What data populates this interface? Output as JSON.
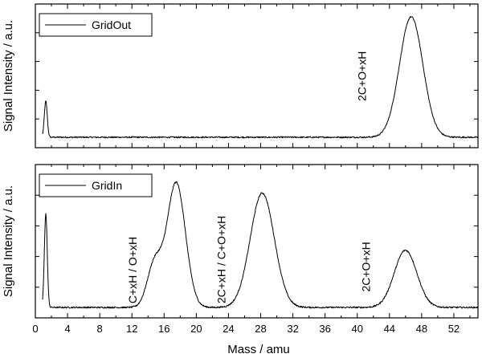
{
  "chart_data": {
    "type": "line",
    "xlabel": "Mass   /   amu",
    "x_ticks": [
      0,
      4,
      8,
      12,
      16,
      20,
      24,
      28,
      32,
      36,
      40,
      44,
      48,
      52
    ],
    "xlim": [
      0,
      55
    ],
    "panels": [
      {
        "name": "top",
        "ylabel": "Signal Intensity   /   a.u.",
        "ylim": [
          0,
          1.1
        ],
        "legend": "GridOut",
        "legend_position": "top-left",
        "annotations": [
          {
            "text": "2C+O+xH",
            "x": 40.5,
            "y": 0.3
          }
        ],
        "peaks": [
          {
            "center": 1.3,
            "height": 0.3,
            "width": 0.18
          },
          {
            "center": 46.7,
            "height": 1.0,
            "width": 1.45
          }
        ]
      },
      {
        "name": "bottom",
        "ylabel": "Signal Intensity   /   a.u.",
        "ylim": [
          0,
          1.1
        ],
        "legend": "GridIn",
        "legend_position": "top-left",
        "annotations": [
          {
            "text": "C+xH / O+xH",
            "x": 12.0,
            "y": 0.03
          },
          {
            "text": "2C+xH / C+O+xH",
            "x": 23.0,
            "y": 0.03
          },
          {
            "text": "2C+O+xH",
            "x": 41.0,
            "y": 0.12
          }
        ],
        "peaks": [
          {
            "center": 1.3,
            "height": 0.72,
            "width": 0.18
          },
          {
            "center": 14.8,
            "height": 0.33,
            "width": 0.9
          },
          {
            "center": 17.5,
            "height": 0.96,
            "width": 1.15
          },
          {
            "center": 28.2,
            "height": 0.88,
            "width": 1.5
          },
          {
            "center": 46.0,
            "height": 0.44,
            "width": 1.4
          }
        ]
      }
    ]
  }
}
